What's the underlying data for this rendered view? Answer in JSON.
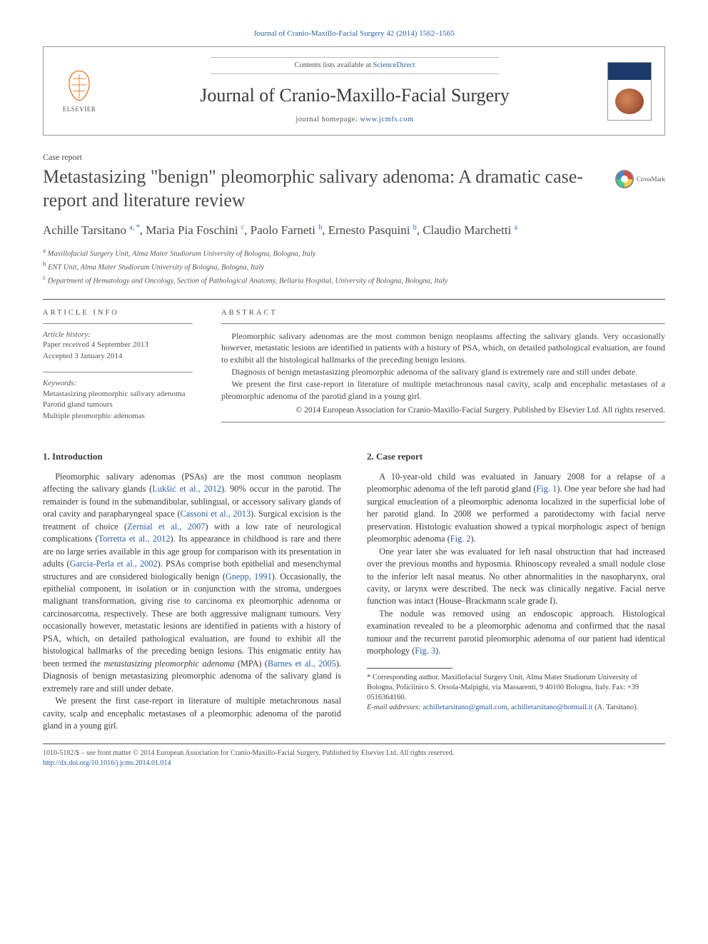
{
  "citation": "Journal of Cranio-Maxillo-Facial Surgery 42 (2014) 1562–1565",
  "header": {
    "contents_prefix": "Contents lists available at ",
    "contents_link": "ScienceDirect",
    "journal_name": "Journal of Cranio-Maxillo-Facial Surgery",
    "homepage_prefix": "journal homepage: ",
    "homepage_url": "www.jcmfs.com",
    "elsevier_label": "ELSEVIER"
  },
  "article_type": "Case report",
  "title": "Metastasizing \"benign\" pleomorphic salivary adenoma: A dramatic case-report and literature review",
  "crossmark_label": "CrossMark",
  "authors_html": "Achille Tarsitano <sup>a, *</sup>, Maria Pia Foschini <sup>c</sup>, Paolo Farneti <sup>b</sup>, Ernesto Pasquini <sup>b</sup>, Claudio Marchetti <sup>a</sup>",
  "affiliations": [
    {
      "sup": "a",
      "text": "Maxillofacial Surgery Unit, Alma Mater Studiorum University of Bologna, Bologna, Italy"
    },
    {
      "sup": "b",
      "text": "ENT Unit, Alma Mater Studiorum University of Bologna, Bologna, Italy"
    },
    {
      "sup": "c",
      "text": "Department of Hematology and Oncology, Section of Pathological Anatomy, Bellaria Hospital, University of Bologna, Bologna, Italy"
    }
  ],
  "info": {
    "heading": "ARTICLE INFO",
    "history_label": "Article history:",
    "history_lines": "Paper received 4 September 2013\nAccepted 3 January 2014",
    "keywords_label": "Keywords:",
    "keywords": "Metastasizing pleomorphic salivary adenoma\nParotid gland tumours\nMultiple pleomorphic adenomas"
  },
  "abstract": {
    "heading": "ABSTRACT",
    "p1": "Pleomorphic salivary adenomas are the most common benign neoplasms affecting the salivary glands. Very occasionally however, metastatic lesions are identified in patients with a history of PSA, which, on detailed pathological evaluation, are found to exhibit all the histological hallmarks of the preceding benign lesions.",
    "p2": "Diagnosis of benign metastasizing pleomorphic adenoma of the salivary gland is extremely rare and still under debate.",
    "p3": "We present the first case-report in literature of multiple metachronous nasal cavity, scalp and encephalic metastases of a pleomorphic adenoma of the parotid gland in a young girl.",
    "copyright": "© 2014 European Association for Cranio-Maxillo-Facial Surgery. Published by Elsevier Ltd. All rights reserved."
  },
  "body": {
    "sec1_heading": "1. Introduction",
    "sec1": {
      "chunk1": "Pleomorphic salivary adenomas (PSAs) are the most common neoplasm affecting the salivary glands (",
      "ref1": "Lukšić et al., 2012",
      "chunk2": "). 90% occur in the parotid. The remainder is found in the submandibular, sublingual, or accessory salivary glands of oral cavity and parapharyngeal space (",
      "ref2": "Cassoni et al., 2013",
      "chunk3": "). Surgical excision is the treatment of choice (",
      "ref3": "Zernial et al., 2007",
      "chunk4": ") with a low rate of neurological complications (",
      "ref4": "Torretta et al., 2012",
      "chunk5": "). Its appearance in childhood is rare and there are no large series available in this age group for comparison with its presentation in adults (",
      "ref5": "Garcia-Perla et al., 2002",
      "chunk6": "). PSAs comprise both epithelial and mesenchymal structures and are considered biologically benign (",
      "ref6": "Gnepp, 1991",
      "chunk7": "). Occasionally, the epithelial component, in isolation or in conjunction with the stroma, undergoes malignant transformation, giving rise to carcinoma ex pleomorphic adenoma or carcinosarcoma, respectively. These are both aggressive malignant tumours. Very occasionally however, metastatic lesions are identified in patients with a history of PSA, which, on detailed pathological evaluation, are found to exhibit all the histological hallmarks of the preceding benign lesions. This enigmatic entity has been termed the ",
      "term": "metastasizing pleomorphic adenoma",
      "chunk8": " (MPA) (",
      "ref7": "Barnes et al., 2005",
      "chunk9": "). Diagnosis of benign metastasizing pleomorphic adenoma of the salivary gland is extremely rare and still under debate.",
      "p2": "We present the first case-report in literature of multiple metachronous nasal cavity, scalp and encephalic metastases of a pleomorphic adenoma of the parotid gland in a young girl."
    },
    "sec2_heading": "2. Case report",
    "sec2": {
      "p1a": "A 10-year-old child was evaluated in January 2008 for a relapse of a pleomorphic adenoma of the left parotid gland (",
      "fig1": "Fig. 1",
      "p1b": "). One year before she had had surgical enucleation of a pleomorphic adenoma localized in the superficial lobe of her parotid gland. In 2008 we performed a parotidectomy with facial nerve preservation. Histologic evaluation showed a typical morphologic aspect of benign pleomorphic adenoma (",
      "fig2": "Fig. 2",
      "p1c": ").",
      "p2": "One year later she was evaluated for left nasal obstruction that had increased over the previous months and hyposmia. Rhinoscopy revealed a small nodule close to the inferior left nasal meatus. No other abnormalities in the nasopharynx, oral cavity, or larynx were described. The neck was clinically negative. Facial nerve function was intact (House–Brackmann scale grade I).",
      "p3a": "The nodule was removed using an endoscopic approach. Histological examination revealed to be a pleomorphic adenoma and confirmed that the nasal tumour and the recurrent parotid pleomorphic adenoma of our patient had identical morphology (",
      "fig3": "Fig. 3",
      "p3b": ")."
    }
  },
  "footnotes": {
    "corr_label": "* Corresponding author.",
    "corr_body": " Maxillofacial Surgery Unit, Alma Mater Studiorum University of Bologna, Policlinico S. Orsola-Malpighi, via Massarenti, 9 40100 Bologna, Italy. Fax: +39 0516364160.",
    "email_label": "E-mail addresses:",
    "email1": "achilletarsitano@gmail.com",
    "email_sep": ", ",
    "email2": "achilletarsitano@hotmail.it",
    "email_tail": " (A. Tarsitano)."
  },
  "bottom": {
    "line1": "1010-5182/$ – see front matter © 2014 European Association for Cranio-Maxillo-Facial Surgery. Published by Elsevier Ltd. All rights reserved.",
    "doi": "http://dx.doi.org/10.1016/j.jcms.2014.01.014"
  },
  "colors": {
    "link": "#2a5fa8",
    "text": "#3a3a3a",
    "muted": "#555555",
    "rule": "#555555"
  }
}
